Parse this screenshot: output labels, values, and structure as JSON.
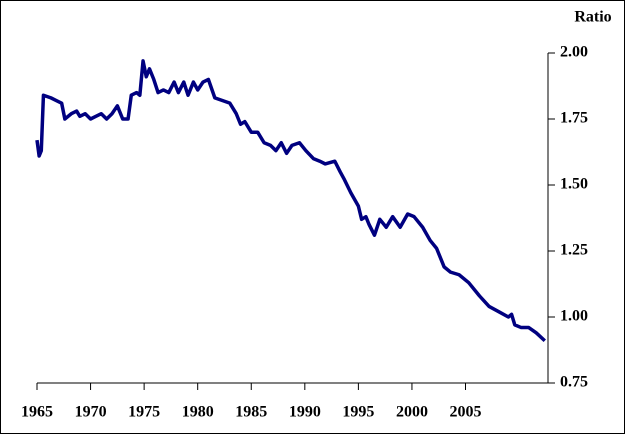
{
  "chart_data": {
    "type": "line",
    "y_label": "Ratio",
    "x": [
      1965.0,
      1965.2,
      1965.4,
      1965.6,
      1966.3,
      1966.8,
      1967.3,
      1967.6,
      1968.2,
      1968.7,
      1969.0,
      1969.5,
      1970.0,
      1970.5,
      1971.0,
      1971.5,
      1972.0,
      1972.5,
      1973.0,
      1973.5,
      1973.8,
      1974.3,
      1974.6,
      1974.9,
      1975.2,
      1975.5,
      1975.9,
      1976.3,
      1976.8,
      1977.3,
      1977.8,
      1978.2,
      1978.7,
      1979.1,
      1979.6,
      1980.0,
      1980.5,
      1981.0,
      1981.6,
      1982.3,
      1983.0,
      1983.6,
      1984.0,
      1984.4,
      1985.0,
      1985.6,
      1986.2,
      1986.8,
      1987.3,
      1987.8,
      1988.3,
      1988.8,
      1989.5,
      1990.1,
      1990.8,
      1991.4,
      1991.9,
      1992.8,
      1993.3,
      1993.7,
      1994.3,
      1995.0,
      1995.3,
      1995.7,
      1996.0,
      1996.5,
      1997.0,
      1997.6,
      1998.2,
      1998.9,
      1999.6,
      2000.2,
      2001.0,
      2001.7,
      2002.3,
      2003.0,
      2003.6,
      2004.4,
      2005.3,
      2006.3,
      2007.2,
      2008.1,
      2009.0,
      2009.3,
      2009.6,
      2010.2,
      2010.9,
      2011.6,
      2012.4
    ],
    "series": [
      {
        "name": "Ratio",
        "color": "#000080",
        "values": [
          1.67,
          1.61,
          1.63,
          1.84,
          1.83,
          1.82,
          1.81,
          1.75,
          1.77,
          1.78,
          1.76,
          1.77,
          1.75,
          1.76,
          1.77,
          1.75,
          1.77,
          1.8,
          1.75,
          1.75,
          1.84,
          1.85,
          1.84,
          1.97,
          1.91,
          1.94,
          1.9,
          1.85,
          1.86,
          1.85,
          1.89,
          1.85,
          1.89,
          1.84,
          1.89,
          1.86,
          1.89,
          1.9,
          1.83,
          1.82,
          1.81,
          1.77,
          1.73,
          1.74,
          1.7,
          1.7,
          1.66,
          1.65,
          1.63,
          1.66,
          1.62,
          1.65,
          1.66,
          1.63,
          1.6,
          1.59,
          1.58,
          1.59,
          1.55,
          1.52,
          1.47,
          1.42,
          1.37,
          1.38,
          1.35,
          1.31,
          1.37,
          1.34,
          1.38,
          1.34,
          1.39,
          1.38,
          1.34,
          1.29,
          1.26,
          1.19,
          1.17,
          1.16,
          1.13,
          1.08,
          1.04,
          1.02,
          1.0,
          1.01,
          0.97,
          0.96,
          0.96,
          0.94,
          0.91
        ]
      }
    ],
    "xlim": [
      1965,
      2012.7
    ],
    "xticks": [
      1965,
      1970,
      1975,
      1980,
      1985,
      1990,
      1995,
      2000,
      2005
    ],
    "ylim": [
      0.75,
      2.0
    ],
    "yticks": [
      {
        "value": 0.75,
        "label": "0.75"
      },
      {
        "value": 1.0,
        "label": "1.00"
      },
      {
        "value": 1.25,
        "label": "1.25"
      },
      {
        "value": 1.5,
        "label": "1.50"
      },
      {
        "value": 1.75,
        "label": "1.75"
      },
      {
        "value": 2.0,
        "label": "2.00"
      }
    ],
    "y_axis_side": "right",
    "grid": false
  }
}
